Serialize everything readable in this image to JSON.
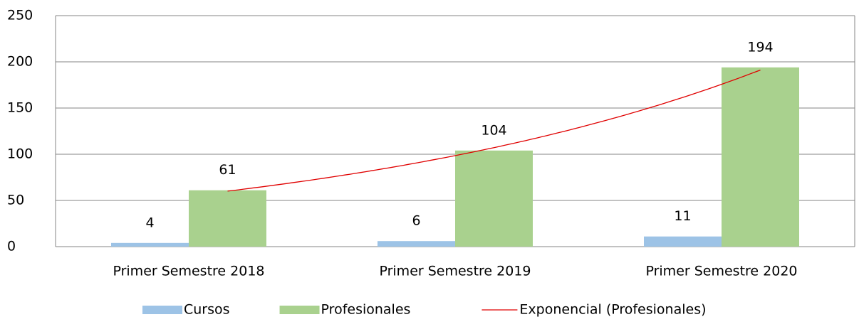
{
  "chart_data": {
    "type": "bar",
    "categories": [
      "Primer Semestre 2018",
      "Primer Semestre 2019",
      "Primer Semestre 2020"
    ],
    "series": [
      {
        "name": "Cursos",
        "color": "#9dc3e6",
        "values": [
          4,
          6,
          11
        ]
      },
      {
        "name": "Profesionales",
        "color": "#a9d18e",
        "values": [
          61,
          104,
          194
        ]
      }
    ],
    "trendline": {
      "name": "Exponencial (Profesionales)",
      "color": "#e00000",
      "kind": "exponential",
      "series": 1
    },
    "ylim": [
      0,
      250
    ],
    "yticks": [
      0,
      50,
      100,
      150,
      200,
      250
    ],
    "grid": true,
    "legend": "bottom"
  }
}
